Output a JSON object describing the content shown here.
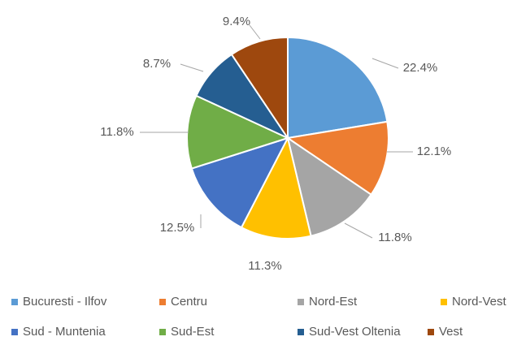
{
  "chart_data": {
    "type": "pie",
    "title": "",
    "unit": "%",
    "slices": [
      {
        "name": "Bucuresti - Ilfov",
        "value": 22.4,
        "label": "22.4%",
        "color": "#5B9BD5"
      },
      {
        "name": "Centru",
        "value": 12.1,
        "label": "12.1%",
        "color": "#ED7D31"
      },
      {
        "name": "Nord-Est",
        "value": 11.8,
        "label": "11.8%",
        "color": "#A5A5A5"
      },
      {
        "name": "Nord-Vest",
        "value": 11.3,
        "label": "11.3%",
        "color": "#FFC000"
      },
      {
        "name": "Sud - Muntenia",
        "value": 12.5,
        "label": "12.5%",
        "color": "#4472C4"
      },
      {
        "name": "Sud-Est",
        "value": 11.8,
        "label": "11.8%",
        "color": "#70AD47"
      },
      {
        "name": "Sud-Vest Oltenia",
        "value": 8.7,
        "label": "8.7%",
        "color": "#255E91"
      },
      {
        "name": "Vest",
        "value": 9.4,
        "label": "9.4%",
        "color": "#9E480E"
      }
    ],
    "start_angle": "12 o'clock, clockwise",
    "legend_position": "bottom"
  }
}
